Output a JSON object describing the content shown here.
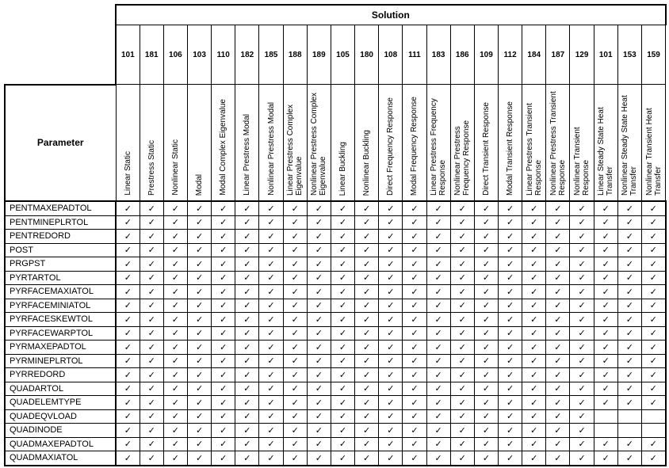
{
  "header": {
    "solution_label": "Solution",
    "parameter_label": "Parameter"
  },
  "check_symbol": "✓",
  "solutions": [
    {
      "number": "101",
      "name": "Linear Static"
    },
    {
      "number": "181",
      "name": "Prestress Static"
    },
    {
      "number": "106",
      "name": "Nonlinear Static"
    },
    {
      "number": "103",
      "name": "Modal"
    },
    {
      "number": "110",
      "name": "Modal Complex Eigenvalue"
    },
    {
      "number": "182",
      "name": "Linear Prestress Modal"
    },
    {
      "number": "185",
      "name": "Nonlinear Prestress Modal"
    },
    {
      "number": "188",
      "name": "Linear Prestress Complex Eigenvalue"
    },
    {
      "number": "189",
      "name": "Nonlinear Prestress Complex Eigenvalue"
    },
    {
      "number": "105",
      "name": "Linear Buckling"
    },
    {
      "number": "180",
      "name": "Nonlinear Buckling"
    },
    {
      "number": "108",
      "name": "Direct Frequency Response"
    },
    {
      "number": "111",
      "name": "Modal Frequency Response"
    },
    {
      "number": "183",
      "name": "Linear Prestress Frequency Response"
    },
    {
      "number": "186",
      "name": "Nonlinear Prestress Frequency Response"
    },
    {
      "number": "109",
      "name": "Direct Transient Response"
    },
    {
      "number": "112",
      "name": "Modal Transient Response"
    },
    {
      "number": "184",
      "name": "Linear Prestress Transient Response"
    },
    {
      "number": "187",
      "name": "Nonlinear Prestress Transient Response"
    },
    {
      "number": "129",
      "name": "Nonlinear Transient Response"
    },
    {
      "number": "101",
      "name": "Linear Steady State Heat Transfer"
    },
    {
      "number": "153",
      "name": "Nonlinear Steady State Heat Transfer"
    },
    {
      "number": "159",
      "name": "Nonlinear Transient Heat Transfer"
    }
  ],
  "rows": [
    {
      "parameter": "PENTMAXEPADTOL",
      "checks": [
        1,
        1,
        1,
        1,
        1,
        1,
        1,
        1,
        1,
        1,
        1,
        1,
        1,
        1,
        1,
        1,
        1,
        1,
        1,
        1,
        1,
        1,
        1
      ]
    },
    {
      "parameter": "PENTMINEPLRTOL",
      "checks": [
        1,
        1,
        1,
        1,
        1,
        1,
        1,
        1,
        1,
        1,
        1,
        1,
        1,
        1,
        1,
        1,
        1,
        1,
        1,
        1,
        1,
        1,
        1
      ]
    },
    {
      "parameter": "PENTREDORD",
      "checks": [
        1,
        1,
        1,
        1,
        1,
        1,
        1,
        1,
        1,
        1,
        1,
        1,
        1,
        1,
        1,
        1,
        1,
        1,
        1,
        1,
        1,
        1,
        1
      ]
    },
    {
      "parameter": "POST",
      "checks": [
        1,
        1,
        1,
        1,
        1,
        1,
        1,
        1,
        1,
        1,
        1,
        1,
        1,
        1,
        1,
        1,
        1,
        1,
        1,
        1,
        1,
        1,
        1
      ]
    },
    {
      "parameter": "PRGPST",
      "checks": [
        1,
        1,
        1,
        1,
        1,
        1,
        1,
        1,
        1,
        1,
        1,
        1,
        1,
        1,
        1,
        1,
        1,
        1,
        1,
        1,
        1,
        1,
        1
      ]
    },
    {
      "parameter": "PYRTARTOL",
      "checks": [
        1,
        1,
        1,
        1,
        1,
        1,
        1,
        1,
        1,
        1,
        1,
        1,
        1,
        1,
        1,
        1,
        1,
        1,
        1,
        1,
        1,
        1,
        1
      ]
    },
    {
      "parameter": "PYRFACEMAXIATOL",
      "checks": [
        1,
        1,
        1,
        1,
        1,
        1,
        1,
        1,
        1,
        1,
        1,
        1,
        1,
        1,
        1,
        1,
        1,
        1,
        1,
        1,
        1,
        1,
        1
      ]
    },
    {
      "parameter": "PYRFACEMINIATOL",
      "checks": [
        1,
        1,
        1,
        1,
        1,
        1,
        1,
        1,
        1,
        1,
        1,
        1,
        1,
        1,
        1,
        1,
        1,
        1,
        1,
        1,
        1,
        1,
        1
      ]
    },
    {
      "parameter": "PYRFACESKEWTOL",
      "checks": [
        1,
        1,
        1,
        1,
        1,
        1,
        1,
        1,
        1,
        1,
        1,
        1,
        1,
        1,
        1,
        1,
        1,
        1,
        1,
        1,
        1,
        1,
        1
      ]
    },
    {
      "parameter": "PYRFACEWARPTOL",
      "checks": [
        1,
        1,
        1,
        1,
        1,
        1,
        1,
        1,
        1,
        1,
        1,
        1,
        1,
        1,
        1,
        1,
        1,
        1,
        1,
        1,
        1,
        1,
        1
      ]
    },
    {
      "parameter": "PYRMAXEPADTOL",
      "checks": [
        1,
        1,
        1,
        1,
        1,
        1,
        1,
        1,
        1,
        1,
        1,
        1,
        1,
        1,
        1,
        1,
        1,
        1,
        1,
        1,
        1,
        1,
        1
      ]
    },
    {
      "parameter": "PYRMINEPLRTOL",
      "checks": [
        1,
        1,
        1,
        1,
        1,
        1,
        1,
        1,
        1,
        1,
        1,
        1,
        1,
        1,
        1,
        1,
        1,
        1,
        1,
        1,
        1,
        1,
        1
      ]
    },
    {
      "parameter": "PYRREDORD",
      "checks": [
        1,
        1,
        1,
        1,
        1,
        1,
        1,
        1,
        1,
        1,
        1,
        1,
        1,
        1,
        1,
        1,
        1,
        1,
        1,
        1,
        1,
        1,
        1
      ]
    },
    {
      "parameter": "QUADARTOL",
      "checks": [
        1,
        1,
        1,
        1,
        1,
        1,
        1,
        1,
        1,
        1,
        1,
        1,
        1,
        1,
        1,
        1,
        1,
        1,
        1,
        1,
        1,
        1,
        1
      ]
    },
    {
      "parameter": "QUADELEMTYPE",
      "checks": [
        1,
        1,
        1,
        1,
        1,
        1,
        1,
        1,
        1,
        1,
        1,
        1,
        1,
        1,
        1,
        1,
        1,
        1,
        1,
        1,
        1,
        1,
        1
      ]
    },
    {
      "parameter": "QUADEQVLOAD",
      "checks": [
        1,
        1,
        1,
        1,
        1,
        1,
        1,
        1,
        1,
        1,
        1,
        1,
        1,
        1,
        1,
        1,
        1,
        1,
        1,
        1,
        0,
        0,
        0
      ]
    },
    {
      "parameter": "QUADINODE",
      "checks": [
        1,
        1,
        1,
        1,
        1,
        1,
        1,
        1,
        1,
        1,
        1,
        1,
        1,
        1,
        1,
        1,
        1,
        1,
        1,
        1,
        0,
        0,
        0
      ]
    },
    {
      "parameter": "QUADMAXEPADTOL",
      "checks": [
        1,
        1,
        1,
        1,
        1,
        1,
        1,
        1,
        1,
        1,
        1,
        1,
        1,
        1,
        1,
        1,
        1,
        1,
        1,
        1,
        1,
        1,
        1
      ]
    },
    {
      "parameter": "QUADMAXIATOL",
      "checks": [
        1,
        1,
        1,
        1,
        1,
        1,
        1,
        1,
        1,
        1,
        1,
        1,
        1,
        1,
        1,
        1,
        1,
        1,
        1,
        1,
        1,
        1,
        1
      ]
    }
  ]
}
